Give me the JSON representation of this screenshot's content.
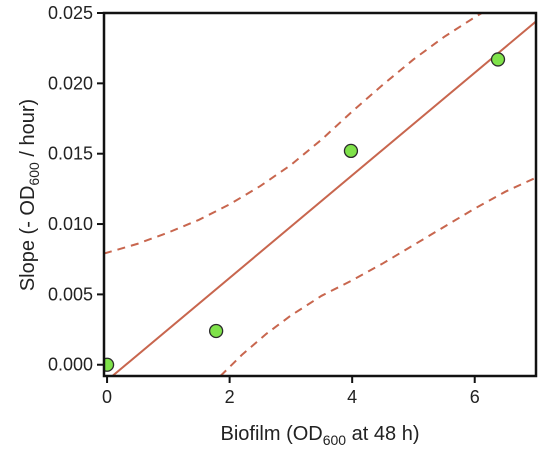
{
  "chart_data": {
    "type": "scatter",
    "title": "",
    "xlabel": {
      "prefix": "Biofilm (OD",
      "subscript": "600",
      "suffix": " at 48 h)"
    },
    "ylabel": {
      "prefix": "Slope (- OD",
      "subscript": "600",
      "suffix": " / hour)"
    },
    "xlim": [
      -0.05,
      7.0
    ],
    "ylim": [
      -0.0008,
      0.025
    ],
    "xticks": [
      0,
      2,
      4,
      6
    ],
    "xtick_labels": [
      "0",
      "2",
      "4",
      "6"
    ],
    "yticks": [
      0.0,
      0.005,
      0.01,
      0.015,
      0.02,
      0.025
    ],
    "ytick_labels": [
      "0.000",
      "0.005",
      "0.010",
      "0.015",
      "0.020",
      "0.025"
    ],
    "grid": false,
    "legend": "none",
    "points": {
      "x": [
        0.0,
        1.78,
        3.98,
        6.38
      ],
      "y": [
        0.0,
        0.0024,
        0.0152,
        0.0217
      ],
      "color": "#7FE24A",
      "edge_color": "#2b2b2b"
    },
    "fit_line": {
      "x": [
        -0.05,
        7.0
      ],
      "y": [
        -0.0013,
        0.0244
      ],
      "color": "#C8664E"
    },
    "confidence_upper": {
      "x": [
        -0.05,
        0.5,
        1.0,
        1.5,
        2.0,
        2.5,
        3.0,
        3.5,
        4.0,
        4.5,
        5.0,
        5.5,
        6.0,
        6.5
      ],
      "y": [
        0.0079,
        0.0086,
        0.0094,
        0.0103,
        0.0114,
        0.0127,
        0.0142,
        0.016,
        0.018,
        0.0199,
        0.0217,
        0.0233,
        0.0247,
        0.026
      ],
      "color": "#C8664E",
      "style": "dashed"
    },
    "confidence_lower": {
      "x": [
        1.85,
        2.2,
        2.6,
        3.0,
        3.5,
        4.0,
        4.5,
        5.0,
        5.5,
        6.0,
        6.5,
        7.0
      ],
      "y": [
        -0.0008,
        0.0007,
        0.0022,
        0.0035,
        0.0049,
        0.006,
        0.0072,
        0.0085,
        0.0098,
        0.0111,
        0.0123,
        0.0133
      ],
      "color": "#C8664E",
      "style": "dashed"
    }
  }
}
